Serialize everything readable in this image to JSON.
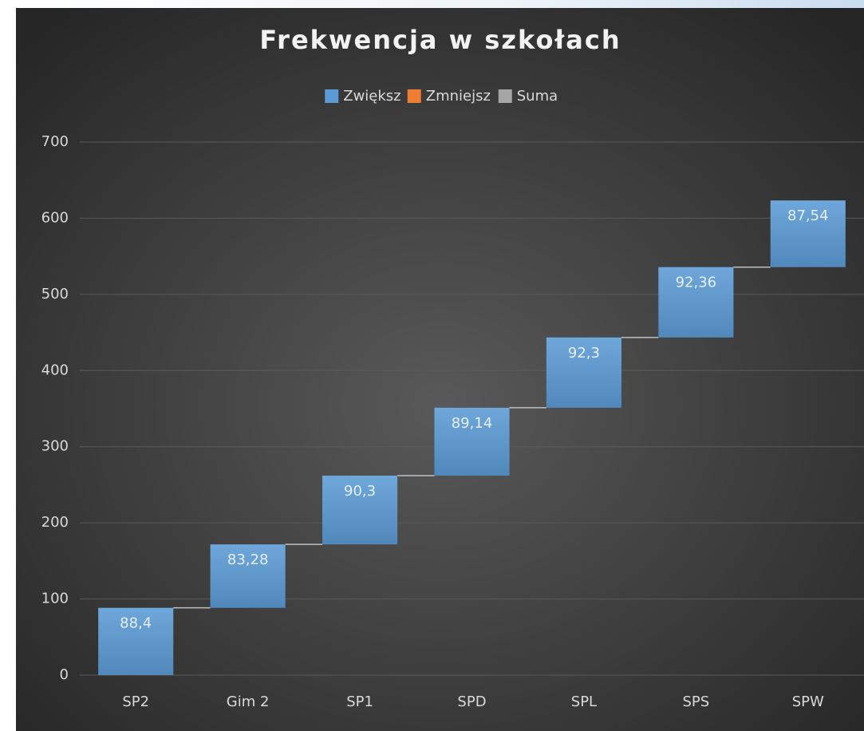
{
  "chart_data": {
    "type": "waterfall",
    "title": "Frekwencja w szkołach",
    "categories": [
      "SP2",
      "Gim 2",
      "SP1",
      "SPD",
      "SPL",
      "SPS",
      "SPW"
    ],
    "series": [
      {
        "name": "Zwiększ",
        "color": "#5b9bd5",
        "values": [
          88.4,
          83.28,
          90.3,
          89.14,
          92.3,
          92.36,
          87.54
        ],
        "value_labels": [
          "88,4",
          "83,28",
          "90,3",
          "89,14",
          "92,3",
          "92,36",
          "87,54"
        ]
      },
      {
        "name": "Zmniejsz",
        "color": "#ed7d31",
        "values": [
          null,
          null,
          null,
          null,
          null,
          null,
          null
        ]
      },
      {
        "name": "Suma",
        "color": "#a5a5a5",
        "values": [
          null,
          null,
          null,
          null,
          null,
          null,
          null
        ]
      }
    ],
    "ylim": [
      0,
      700
    ],
    "yticks": [
      0,
      100,
      200,
      300,
      400,
      500,
      600,
      700
    ],
    "grid": true,
    "legend": "top"
  }
}
